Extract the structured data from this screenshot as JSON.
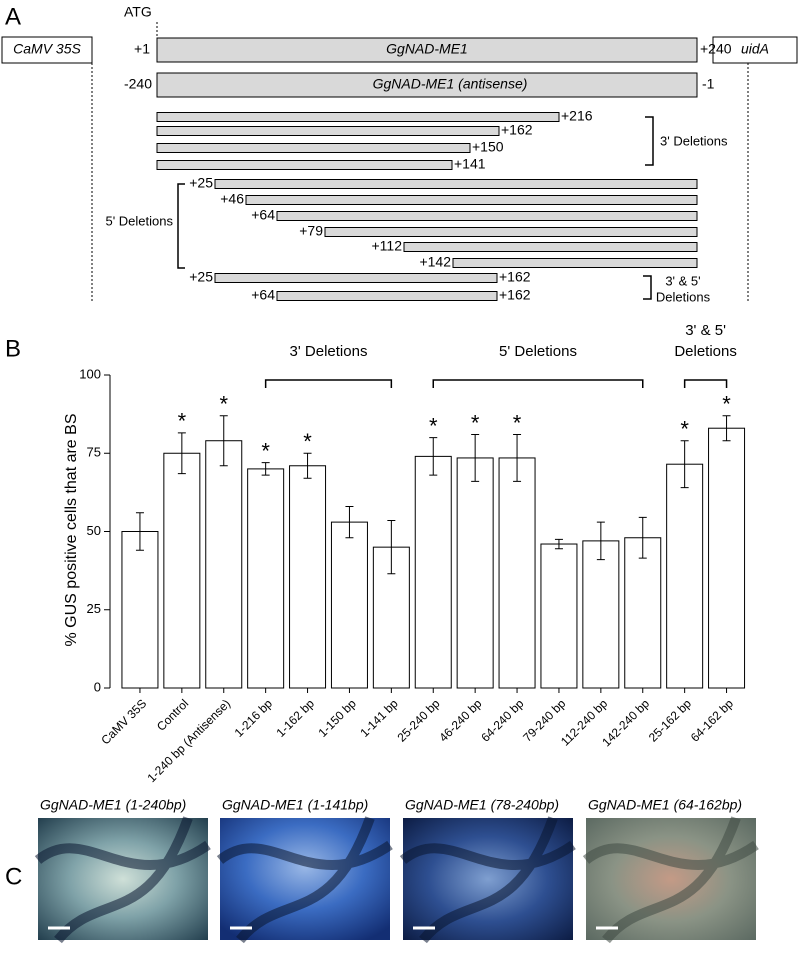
{
  "panel_a": {
    "letter": "A",
    "atg": "ATG",
    "promoter": "CaMV 35S",
    "reporter": "uidA",
    "gene": "GgNAD-ME1",
    "antisense": "GgNAD-ME1 (antisense)",
    "sense_start": "+1",
    "sense_end": "+240",
    "antisense_start": "-240",
    "antisense_end": "-1",
    "three_prime": [
      "+216",
      "+162",
      "+150",
      "+141"
    ],
    "three_prime_label": "3' Deletions",
    "five_prime": [
      "+25",
      "+46",
      "+64",
      "+79",
      "+112",
      "+142"
    ],
    "five_prime_label": "5' Deletions",
    "both": [
      [
        "+25",
        "+162"
      ],
      [
        "+64",
        "+162"
      ]
    ],
    "both_label": [
      "3' & 5'",
      "Deletions"
    ]
  },
  "chart_data": {
    "type": "bar",
    "letter": "B",
    "ylabel": "% GUS positive cells that are BS",
    "categories": [
      "CaMV 35S",
      "Control",
      "1-240 bp (Antisense)",
      "1-216 bp",
      "1-162 bp",
      "1-150 bp",
      "1-141 bp",
      "25-240 bp",
      "46-240 bp",
      "64-240 bp",
      "79-240 bp",
      "112-240 bp",
      "142-240 bp",
      "25-162 bp",
      "64-162 bp"
    ],
    "values": [
      50,
      75,
      79,
      70,
      71,
      53,
      45,
      74,
      73.5,
      73.5,
      46,
      47,
      48,
      71.5,
      83
    ],
    "errors": [
      6,
      6.5,
      8,
      2,
      4,
      5,
      8.5,
      6,
      7.5,
      7.5,
      1.5,
      6,
      6.5,
      7.5,
      4
    ],
    "significance": [
      null,
      "*",
      "*",
      "*",
      "*",
      null,
      null,
      "*",
      "*",
      "*",
      null,
      null,
      null,
      "*",
      "*"
    ],
    "groups": [
      {
        "label": [
          "3' Deletions"
        ],
        "from": 3,
        "to": 6
      },
      {
        "label": [
          "5' Deletions"
        ],
        "from": 7,
        "to": 12
      },
      {
        "label": [
          "3' & 5'",
          "Deletions"
        ],
        "from": 13,
        "to": 14
      }
    ],
    "color": "#ffffff",
    "ylim": [
      0,
      100
    ],
    "yticks": [
      0,
      25,
      50,
      75,
      100
    ]
  },
  "panel_c": {
    "letter": "C",
    "images": [
      "GgNAD-ME1 (1-240bp)",
      "GgNAD-ME1 (1-141bp)",
      "GgNAD-ME1 (78-240bp)",
      "GgNAD-ME1 (64-162bp)"
    ]
  }
}
